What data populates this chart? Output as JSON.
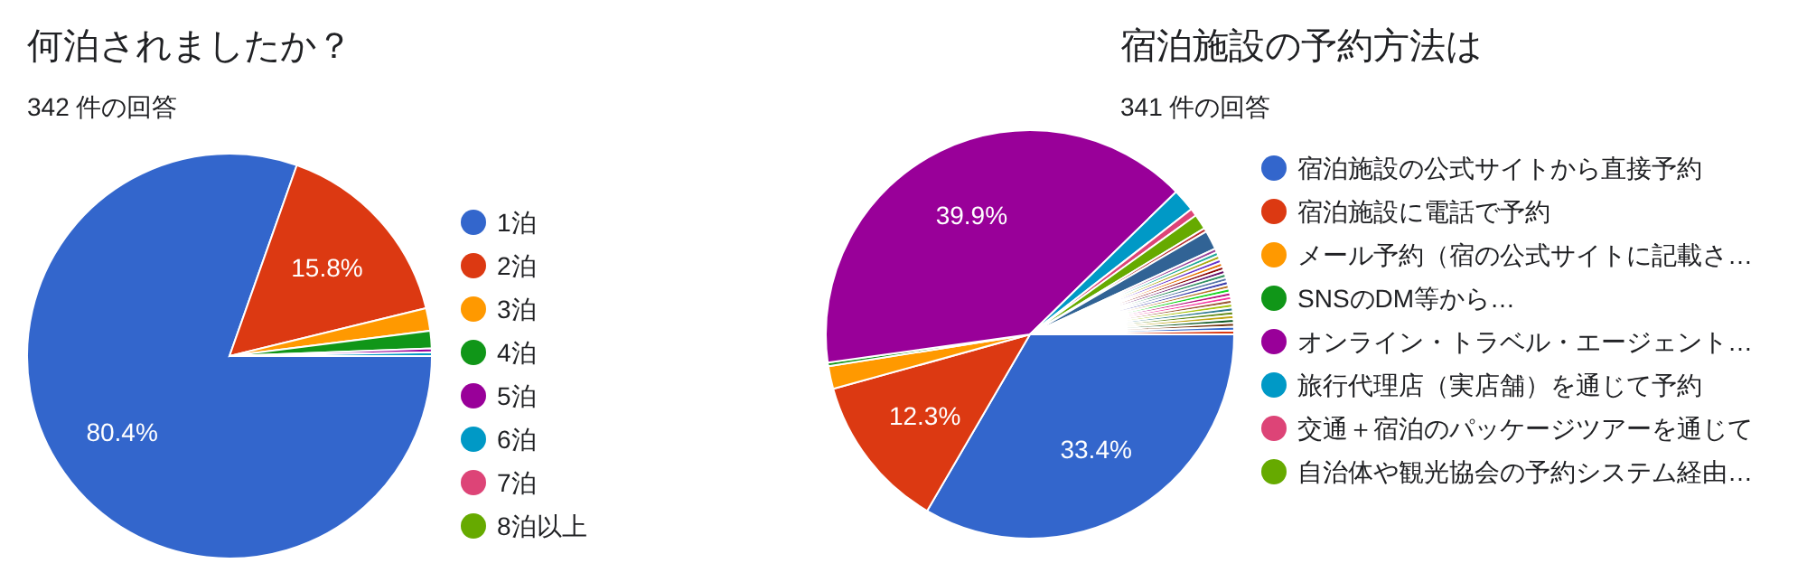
{
  "chart_data": [
    {
      "type": "pie",
      "title": "何泊されましたか？",
      "subtitle": "342 件の回答",
      "legend": "right",
      "categories": [
        "1泊",
        "2泊",
        "3泊",
        "4泊",
        "5泊",
        "6泊",
        "7泊",
        "8泊以上"
      ],
      "values": [
        80.4,
        15.8,
        1.8,
        1.4,
        0.3,
        0.3,
        0,
        0
      ],
      "colors": [
        "#3366cc",
        "#dc3912",
        "#ff9900",
        "#109618",
        "#990099",
        "#0099c6",
        "#dd4477",
        "#66aa00"
      ],
      "value_labels": [
        "80.4%",
        "15.8%",
        null,
        null,
        null,
        null,
        null,
        null
      ]
    },
    {
      "type": "pie",
      "title": "宿泊施設の予約方法は",
      "subtitle": "341 件の回答",
      "legend": "right",
      "categories": [
        "宿泊施設の公式サイトから直接予約",
        "宿泊施設に電話で予約",
        "メール予約（宿の公式サイトに記載さ…",
        "SNSのDM等から…",
        "オンライン・トラベル・エージェント…",
        "旅行代理店（実店舗）を通じて予約",
        "交通＋宿泊のパッケージツアーを通じて",
        "自治体や観光協会の予約システム経由…",
        null,
        null,
        null,
        null,
        null,
        null,
        null,
        null,
        null,
        null,
        null,
        null,
        null,
        null,
        null,
        null,
        null,
        null,
        null,
        null,
        null,
        null,
        null,
        null,
        null
      ],
      "values": [
        33.4,
        12.3,
        1.8,
        0.3,
        39.9,
        1.8,
        0.6,
        1.2,
        0.3,
        1.5,
        0.3,
        0.3,
        0.3,
        0.3,
        0.3,
        0.3,
        0.3,
        0.3,
        0.3,
        0.3,
        0.3,
        0.3,
        0.3,
        0.3,
        0.3,
        0.3,
        0.3,
        0.3,
        0.3,
        0.3,
        0.3,
        0.3,
        0.3
      ],
      "colors": [
        "#3366cc",
        "#dc3912",
        "#ff9900",
        "#109618",
        "#990099",
        "#0099c6",
        "#dd4477",
        "#66aa00",
        "#b82e2e",
        "#316395",
        "#994499",
        "#22aa99",
        "#aaaa11",
        "#6633cc",
        "#e67300",
        "#8b0707",
        "#651067",
        "#329262",
        "#5574a6",
        "#3b3eac",
        "#b77322",
        "#16d620",
        "#b91383",
        "#f4359e",
        "#9c5935",
        "#a9c413",
        "#2a778d",
        "#668d1c",
        "#bea413",
        "#0c5922",
        "#743411",
        "#3366cc",
        "#dc3912"
      ],
      "value_labels": [
        "33.4%",
        "12.3%",
        null,
        null,
        "39.9%",
        null,
        null,
        null,
        null,
        null,
        null,
        null,
        null,
        null,
        null,
        null,
        null,
        null,
        null,
        null,
        null,
        null,
        null,
        null,
        null,
        null,
        null,
        null,
        null,
        null,
        null,
        null,
        null
      ]
    }
  ]
}
